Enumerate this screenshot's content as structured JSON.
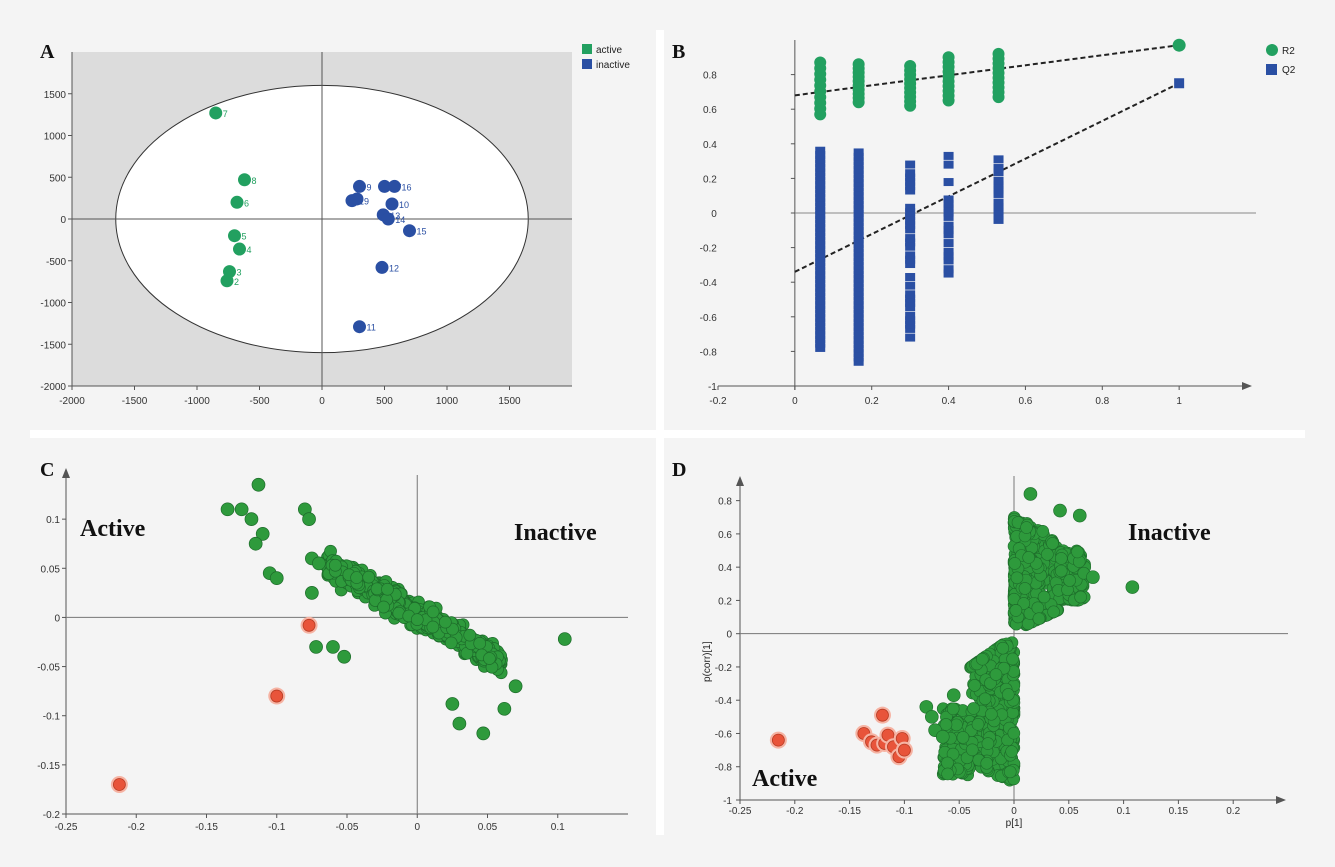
{
  "chart_data": [
    {
      "panel": "A",
      "type": "scatter",
      "xlim": [
        -2000,
        2000
      ],
      "ylim": [
        -2000,
        2000
      ],
      "x_ticks": [
        "-2000",
        "-1500",
        "-1000",
        "-500",
        "0",
        "500",
        "1000",
        "1500"
      ],
      "y_ticks": [
        "1500",
        "1000",
        "500",
        "0",
        "-500",
        "-1000",
        "-1500",
        "-2000"
      ],
      "legend": [
        "active",
        "inactive"
      ],
      "colors": {
        "active": "#22a060",
        "inactive": "#2a4fa3",
        "background": "#dcdcdc"
      },
      "series": [
        {
          "name": "active",
          "points": [
            {
              "label": "7",
              "x": -850,
              "y": 1270
            },
            {
              "label": "8",
              "x": -620,
              "y": 470
            },
            {
              "label": "6",
              "x": -680,
              "y": 200
            },
            {
              "label": "5",
              "x": -700,
              "y": -200
            },
            {
              "label": "4",
              "x": -660,
              "y": -360
            },
            {
              "label": "3",
              "x": -740,
              "y": -630
            },
            {
              "label": "2",
              "x": -760,
              "y": -740
            }
          ]
        },
        {
          "name": "inactive",
          "points": [
            {
              "label": "17",
              "x": 500,
              "y": 390
            },
            {
              "label": "9",
              "x": 300,
              "y": 390
            },
            {
              "label": "16",
              "x": 580,
              "y": 390
            },
            {
              "label": "19",
              "x": 240,
              "y": 220
            },
            {
              "label": "",
              "x": 280,
              "y": 240
            },
            {
              "label": "10",
              "x": 560,
              "y": 180
            },
            {
              "label": "13",
              "x": 490,
              "y": 50
            },
            {
              "label": "14",
              "x": 530,
              "y": 0
            },
            {
              "label": "15",
              "x": 700,
              "y": -140
            },
            {
              "label": "12",
              "x": 480,
              "y": -580
            },
            {
              "label": "11",
              "x": 300,
              "y": -1290
            }
          ]
        }
      ]
    },
    {
      "panel": "B",
      "type": "scatter",
      "xlim": [
        -0.2,
        1.2
      ],
      "ylim": [
        -1,
        1
      ],
      "x_ticks": [
        "-0.2",
        "0",
        "0.2",
        "0.4",
        "0.6",
        "0.8",
        "1"
      ],
      "y_ticks": [
        "0.8",
        "0.6",
        "0.4",
        "0.2",
        "0",
        "-0.2",
        "-0.4",
        "-0.6",
        "-0.8",
        "-1"
      ],
      "legend": [
        "R2",
        "Q2"
      ],
      "colors": {
        "R2": "#22a060",
        "Q2": "#2a4fa3"
      },
      "permutation_x": [
        0.066,
        0.166,
        0.3,
        0.4,
        0.53
      ],
      "r2_ranges": [
        [
          0.57,
          0.87
        ],
        [
          0.64,
          0.86
        ],
        [
          0.62,
          0.85
        ],
        [
          0.65,
          0.9
        ],
        [
          0.67,
          0.92
        ]
      ],
      "q2_ranges": [
        [
          -0.78,
          0.36
        ],
        [
          -0.86,
          0.35
        ],
        [
          -0.72,
          0.28
        ],
        [
          -0.35,
          0.33
        ],
        [
          -0.04,
          0.31
        ]
      ],
      "r2_original": {
        "x": 1,
        "y": 0.97
      },
      "q2_original": {
        "x": 1,
        "y": 0.75
      },
      "r2_intercept": 0.68,
      "q2_intercept": -0.34
    },
    {
      "panel": "C",
      "type": "scatter",
      "xlim": [
        -0.25,
        0.15
      ],
      "ylim": [
        -0.2,
        0.15
      ],
      "x_ticks": [
        "-0.25",
        "-0.2",
        "-0.15",
        "-0.1",
        "-0.05",
        "0",
        "0.05",
        "0.1"
      ],
      "y_ticks": [
        "0.1",
        "0.05",
        "0",
        "-0.05",
        "-0.1",
        "-0.15",
        "-0.2"
      ],
      "annotations": [
        "Active",
        "Inactive"
      ],
      "colors": {
        "variables": "#2e9a3c",
        "highlighted": "#e8543a"
      },
      "highlighted_points": [
        {
          "x": -0.212,
          "y": -0.17
        },
        {
          "x": -0.1,
          "y": -0.08
        },
        {
          "x": -0.077,
          "y": -0.008
        }
      ],
      "outlier_points": [
        {
          "x": -0.135,
          "y": 0.11
        },
        {
          "x": -0.125,
          "y": 0.11
        },
        {
          "x": -0.118,
          "y": 0.1
        },
        {
          "x": -0.113,
          "y": 0.135
        },
        {
          "x": -0.11,
          "y": 0.085
        },
        {
          "x": -0.115,
          "y": 0.075
        },
        {
          "x": -0.105,
          "y": 0.045
        },
        {
          "x": -0.1,
          "y": 0.04
        },
        {
          "x": -0.08,
          "y": 0.11
        },
        {
          "x": -0.077,
          "y": 0.1
        },
        {
          "x": -0.075,
          "y": 0.06
        },
        {
          "x": -0.07,
          "y": 0.055
        },
        {
          "x": -0.075,
          "y": 0.025
        },
        {
          "x": -0.072,
          "y": -0.03
        },
        {
          "x": -0.06,
          "y": -0.03
        },
        {
          "x": -0.052,
          "y": -0.04
        },
        {
          "x": 0.105,
          "y": -0.022
        },
        {
          "x": 0.07,
          "y": -0.07
        },
        {
          "x": 0.062,
          "y": -0.093
        },
        {
          "x": 0.047,
          "y": -0.118
        },
        {
          "x": 0.03,
          "y": -0.108
        },
        {
          "x": 0.025,
          "y": -0.088
        }
      ],
      "cloud": {
        "x_range": [
          -0.065,
          0.06
        ],
        "y_range": [
          -0.075,
          0.078
        ],
        "count": 650
      }
    },
    {
      "panel": "D",
      "type": "scatter",
      "xlim": [
        -0.25,
        0.25
      ],
      "ylim": [
        -1,
        0.9
      ],
      "x_ticks": [
        "-0.25",
        "-0.2",
        "-0.15",
        "-0.1",
        "-0.05",
        "0",
        "0.05",
        "0.1",
        "0.15",
        "0.2"
      ],
      "y_ticks": [
        "0.8",
        "0.6",
        "0.4",
        "0.2",
        "0",
        "-0.2",
        "-0.4",
        "-0.6",
        "-0.8",
        "-1"
      ],
      "xlabel": "p[1]",
      "ylabel": "p(corr)[1]",
      "annotations": [
        "Inactive",
        "Active"
      ],
      "colors": {
        "variables": "#2e9a3c",
        "highlighted": "#e8543a"
      },
      "highlighted_points": [
        {
          "x": -0.215,
          "y": -0.64
        },
        {
          "x": -0.137,
          "y": -0.6
        },
        {
          "x": -0.13,
          "y": -0.65
        },
        {
          "x": -0.125,
          "y": -0.67
        },
        {
          "x": -0.118,
          "y": -0.66
        },
        {
          "x": -0.12,
          "y": -0.49
        },
        {
          "x": -0.115,
          "y": -0.61
        },
        {
          "x": -0.11,
          "y": -0.68
        },
        {
          "x": -0.105,
          "y": -0.74
        },
        {
          "x": -0.102,
          "y": -0.63
        },
        {
          "x": -0.1,
          "y": -0.7
        }
      ],
      "outlier_points": [
        {
          "x": 0.108,
          "y": 0.28
        },
        {
          "x": 0.072,
          "y": 0.34
        },
        {
          "x": 0.06,
          "y": 0.71
        },
        {
          "x": 0.042,
          "y": 0.74
        },
        {
          "x": 0.015,
          "y": 0.84
        },
        {
          "x": -0.08,
          "y": -0.44
        },
        {
          "x": -0.075,
          "y": -0.5
        },
        {
          "x": -0.072,
          "y": -0.58
        },
        {
          "x": -0.065,
          "y": -0.62
        },
        {
          "x": -0.055,
          "y": -0.37
        }
      ]
    }
  ]
}
